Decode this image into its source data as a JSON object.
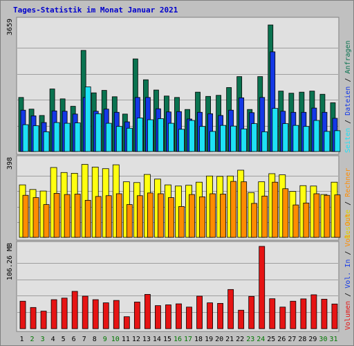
{
  "chart_data": {
    "type": "bar",
    "title": "Tages-Statistik im Monat Januar 2021",
    "categories": [
      "1",
      "2",
      "3",
      "4",
      "5",
      "6",
      "7",
      "8",
      "9",
      "10",
      "11",
      "12",
      "13",
      "14",
      "15",
      "16",
      "17",
      "18",
      "19",
      "20",
      "21",
      "22",
      "23",
      "24",
      "25",
      "26",
      "27",
      "28",
      "29",
      "30",
      "31"
    ],
    "weekend_days": [
      "2",
      "3",
      "9",
      "10",
      "16",
      "17",
      "23",
      "24",
      "30",
      "31"
    ],
    "colors": {
      "background": "#c0c0c0",
      "panel": "#e0e0e0",
      "title": "#0000cc",
      "day_normal": "#000000",
      "day_weekend": "#007700",
      "anfragen": "#0a7350",
      "dateien": "#1438e6",
      "seiten": "#1ee1f5",
      "besuche": "#ffff10",
      "rechner": "#ff8c00",
      "volumen": "#e61414"
    },
    "panels": [
      {
        "max_label": "3659",
        "ylim": [
          0,
          3659
        ],
        "series": [
          {
            "name": "Anfragen",
            "values": [
              1530,
              1200,
              1020,
              1770,
              1490,
              1280,
              2860,
              1660,
              1730,
              1550,
              1060,
              2620,
              2030,
              1740,
              1570,
              1530,
              1190,
              1680,
              1560,
              1590,
              1810,
              2120,
              1190,
              2120,
              3580,
              1710,
              1650,
              1680,
              1710,
              1620,
              1380
            ]
          },
          {
            "name": "Dateien",
            "values": [
              1170,
              1010,
              820,
              1150,
              1140,
              1060,
              1530,
              1140,
              1200,
              1110,
              840,
              1530,
              1530,
              1210,
              1120,
              1130,
              920,
              1110,
              1070,
              1020,
              1170,
              1520,
              1100,
              1530,
              2820,
              1140,
              1110,
              1110,
              1230,
              1110,
              940
            ]
          },
          {
            "name": "Seiten",
            "values": [
              760,
              730,
              560,
              820,
              800,
              810,
              1830,
              1070,
              800,
              710,
              660,
              950,
              900,
              930,
              800,
              630,
              880,
              710,
              570,
              740,
              720,
              640,
              790,
              560,
              1220,
              790,
              740,
              710,
              880,
              570,
              590
            ]
          }
        ]
      },
      {
        "max_label": "398",
        "ylim": [
          0,
          398
        ],
        "series": [
          {
            "name": "Besuche",
            "values": [
              272,
              248,
              240,
              362,
              336,
              332,
              378,
              364,
              356,
              376,
              288,
              284,
              326,
              302,
              272,
              266,
              270,
              286,
              318,
              316,
              318,
              348,
              232,
              288,
              330,
              324,
              238,
              268,
              266,
              222,
              286
            ]
          },
          {
            "name": "Rechner",
            "values": [
              218,
              206,
              170,
              228,
              222,
              224,
              192,
              212,
              216,
              226,
              170,
              216,
              230,
              226,
              206,
              160,
              222,
              210,
              226,
              224,
              290,
              288,
              176,
              214,
              286,
              252,
              168,
              178,
              226,
              218,
              220
            ]
          }
        ]
      },
      {
        "max_label": "106.26 MB",
        "ylim": [
          0,
          106.26
        ],
        "series": [
          {
            "name": "Volumen",
            "values": [
              35.5,
              27.4,
              22.7,
              37.5,
              39.5,
              48.2,
              42.0,
              37.5,
              33.4,
              36.5,
              15.5,
              34.4,
              44.3,
              29.8,
              30.8,
              32.1,
              27.9,
              42.0,
              33.4,
              32.7,
              50.6,
              23.9,
              41.7,
              106.26,
              38.7,
              27.9,
              35.5,
              38.5,
              43.8,
              38.1,
              31.9
            ]
          }
        ]
      }
    ],
    "right_labels": [
      [
        {
          "text": "Seiten",
          "color": "#1ee1f5"
        },
        {
          "text": " / ",
          "color": "#000000"
        },
        {
          "text": "Dateien",
          "color": "#1438e6"
        },
        {
          "text": " / ",
          "color": "#000000"
        },
        {
          "text": "Anfragen",
          "color": "#0a7350"
        }
      ],
      [
        {
          "text": "Besuche",
          "color": "#e0d000"
        },
        {
          "text": " / ",
          "color": "#000000"
        },
        {
          "text": "Rechner",
          "color": "#ff8c00"
        }
      ],
      [
        {
          "text": "Volumen",
          "color": "#e61414"
        },
        {
          "text": " / ",
          "color": "#000000"
        },
        {
          "text": "Vol. In",
          "color": "#1438e6"
        },
        {
          "text": " / ",
          "color": "#000000"
        },
        {
          "text": "Vol. Out",
          "color": "#ff8c00"
        }
      ]
    ]
  }
}
